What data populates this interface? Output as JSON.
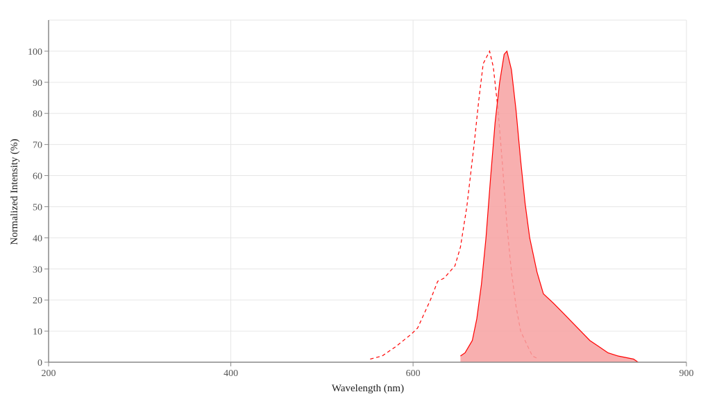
{
  "chart_data": {
    "type": "area",
    "title": "",
    "xlabel": "Wavelength (nm)",
    "ylabel": "Normalized Intensity (%)",
    "xlim": [
      200,
      900
    ],
    "ylim": [
      0,
      110
    ],
    "x_ticks": [
      200,
      400,
      600,
      900
    ],
    "y_ticks": [
      0,
      10,
      20,
      30,
      40,
      50,
      60,
      70,
      80,
      90,
      100
    ],
    "grid": true,
    "legend": "none",
    "colors": {
      "line": "#ff0000",
      "fill": "#f7a1a1",
      "grid": "#e6e6e6",
      "axis": "#888888"
    },
    "series": [
      {
        "style": "dashed-line",
        "x": [
          553,
          566,
          581,
          598,
          605,
          619,
          627,
          634,
          646,
          652,
          659,
          667,
          672,
          677,
          684,
          688,
          693,
          698,
          703,
          708,
          713,
          718,
          726,
          731,
          738
        ],
        "y": [
          1,
          2,
          5,
          9,
          11,
          20,
          26,
          27,
          31,
          37,
          50,
          70,
          84,
          96,
          100,
          95,
          82,
          64,
          44,
          29,
          18,
          10,
          5,
          2,
          1
        ]
      },
      {
        "style": "filled-area",
        "x": [
          652,
          657,
          665,
          670,
          675,
          680,
          685,
          690,
          695,
          700,
          703,
          708,
          713,
          718,
          723,
          728,
          736,
          743,
          754,
          764,
          774,
          784,
          794,
          804,
          814,
          825,
          842,
          847
        ],
        "y": [
          2,
          3,
          7,
          14,
          25,
          40,
          59,
          77,
          90,
          99,
          100,
          94,
          81,
          65,
          51,
          40,
          29,
          22,
          19,
          16,
          13,
          10,
          7,
          5,
          3,
          2,
          1,
          0
        ]
      }
    ]
  }
}
